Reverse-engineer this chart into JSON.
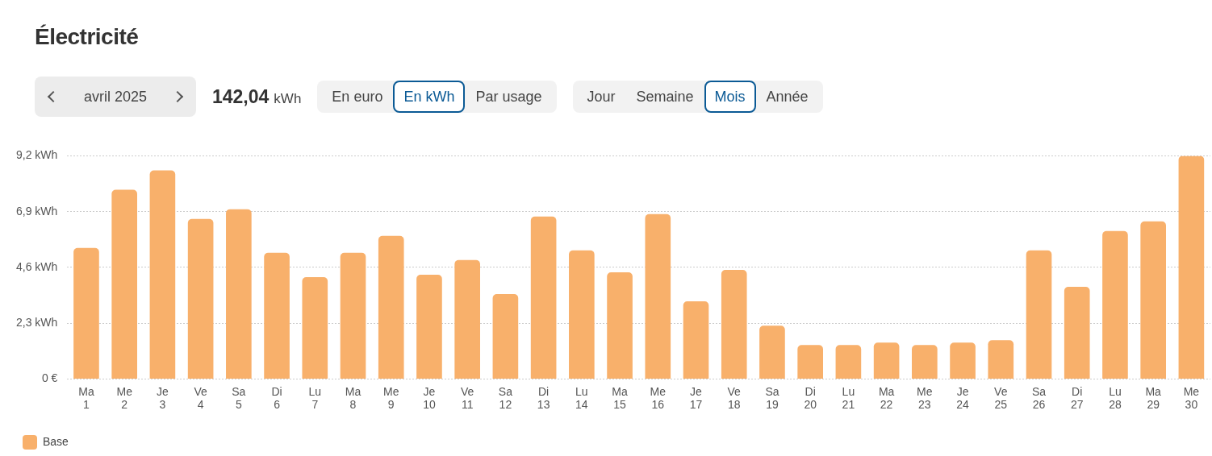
{
  "chart_data": {
    "type": "bar",
    "title": "Électricité",
    "annotations": [
      "avril 2025",
      "142,04",
      "kWh",
      "En euro",
      "En kWh",
      "Par usage",
      "Jour",
      "Semaine",
      "Mois",
      "Année"
    ],
    "categories": [
      "Ma 1",
      "Me 2",
      "Je 3",
      "Ve 4",
      "Sa 5",
      "Di 6",
      "Lu 7",
      "Ma 8",
      "Me 9",
      "Je 10",
      "Ve 11",
      "Sa 12",
      "Di 13",
      "Lu 14",
      "Ma 15",
      "Me 16",
      "Je 17",
      "Ve 18",
      "Sa 19",
      "Di 20",
      "Lu 21",
      "Ma 22",
      "Me 23",
      "Je 24",
      "Ve 25",
      "Sa 26",
      "Di 27",
      "Lu 28",
      "Ma 29",
      "Me 30"
    ],
    "series": [
      {
        "name": "Base",
        "color": "#f8b06b",
        "values": [
          5.4,
          7.8,
          8.6,
          6.6,
          7.0,
          5.2,
          4.2,
          5.2,
          5.9,
          4.3,
          4.9,
          3.5,
          6.7,
          5.3,
          4.4,
          6.8,
          3.2,
          4.5,
          2.2,
          1.4,
          1.4,
          1.5,
          1.4,
          1.5,
          1.6,
          5.3,
          3.8,
          6.1,
          6.5,
          9.2
        ]
      }
    ],
    "ylim": [
      0,
      9.2
    ],
    "yticks": [
      {
        "value": 0,
        "label": "0 €"
      },
      {
        "value": 2.3,
        "label": "2,3 kWh"
      },
      {
        "value": 4.6,
        "label": "4,6 kWh"
      },
      {
        "value": 6.9,
        "label": "6,9 kWh"
      },
      {
        "value": 9.2,
        "label": "9,2 kWh"
      }
    ],
    "grid": "y",
    "legend": "bottom left"
  }
}
